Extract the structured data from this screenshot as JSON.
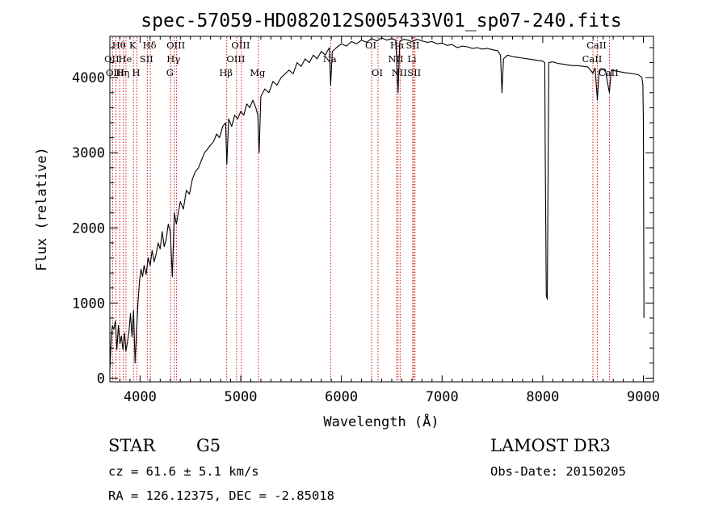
{
  "chart_data": {
    "type": "line",
    "title": "spec-57059-HD082012S005433V01_sp07-240.fits",
    "xlabel": "Wavelength (Å)",
    "ylabel": "Flux (relative)",
    "xlim": [
      3700,
      9100
    ],
    "ylim": [
      -50,
      4550
    ],
    "xticks": [
      4000,
      5000,
      6000,
      7000,
      8000,
      9000
    ],
    "yticks": [
      0,
      1000,
      2000,
      3000,
      4000
    ],
    "grid": false,
    "series": [
      {
        "x": [
          3700,
          3712,
          3725,
          3740,
          3755,
          3770,
          3785,
          3800,
          3815,
          3830,
          3845,
          3860,
          3875,
          3890,
          3905,
          3920,
          3935,
          3950,
          3965,
          3980,
          3995,
          4010,
          4025,
          4040,
          4060,
          4080,
          4100,
          4120,
          4140,
          4160,
          4180,
          4200,
          4220,
          4240,
          4260,
          4280,
          4300,
          4320,
          4340,
          4360,
          4380,
          4400,
          4430,
          4460,
          4490,
          4520,
          4550,
          4580,
          4610,
          4640,
          4670,
          4700,
          4730,
          4760,
          4790,
          4820,
          4850,
          4862,
          4880,
          4910,
          4940,
          4970,
          5000,
          5030,
          5060,
          5090,
          5120,
          5150,
          5170,
          5183,
          5200,
          5240,
          5280,
          5320,
          5360,
          5400,
          5440,
          5480,
          5520,
          5560,
          5600,
          5640,
          5680,
          5720,
          5760,
          5800,
          5840,
          5880,
          5893,
          5910,
          5950,
          6000,
          6050,
          6100,
          6150,
          6200,
          6250,
          6300,
          6350,
          6400,
          6450,
          6500,
          6540,
          6563,
          6580,
          6620,
          6660,
          6700,
          6750,
          6800,
          6850,
          6900,
          6950,
          7000,
          7050,
          7100,
          7150,
          7200,
          7250,
          7300,
          7350,
          7400,
          7450,
          7500,
          7550,
          7580,
          7595,
          7610,
          7650,
          7700,
          7750,
          7800,
          7850,
          7900,
          7950,
          8000,
          8020,
          8025,
          8035,
          8045,
          8060,
          8100,
          8150,
          8200,
          8250,
          8300,
          8350,
          8400,
          8450,
          8498,
          8520,
          8542,
          8560,
          8580,
          8620,
          8662,
          8680,
          8720,
          8760,
          8800,
          8850,
          8900,
          8950,
          8985,
          8995,
          9000,
          9005
        ],
        "y": [
          100,
          480,
          700,
          650,
          760,
          380,
          700,
          460,
          560,
          380,
          600,
          360,
          480,
          620,
          860,
          550,
          900,
          200,
          620,
          1020,
          1300,
          1450,
          1350,
          1500,
          1380,
          1600,
          1500,
          1700,
          1550,
          1650,
          1800,
          1720,
          1950,
          1750,
          1850,
          2050,
          1950,
          1350,
          2200,
          2050,
          2200,
          2350,
          2250,
          2500,
          2450,
          2650,
          2750,
          2800,
          2900,
          3000,
          3050,
          3100,
          3150,
          3250,
          3200,
          3350,
          3400,
          2850,
          3450,
          3350,
          3500,
          3450,
          3550,
          3500,
          3650,
          3600,
          3700,
          3600,
          3500,
          3000,
          3750,
          3850,
          3800,
          3950,
          3900,
          4000,
          4050,
          4100,
          4050,
          4200,
          4150,
          4250,
          4200,
          4300,
          4250,
          4350,
          4300,
          4400,
          3900,
          4350,
          4400,
          4450,
          4420,
          4480,
          4450,
          4500,
          4470,
          4520,
          4490,
          4530,
          4500,
          4520,
          4500,
          3800,
          4480,
          4510,
          4500,
          4480,
          4510,
          4490,
          4470,
          4480,
          4450,
          4460,
          4430,
          4440,
          4400,
          4420,
          4410,
          4390,
          4400,
          4380,
          4390,
          4370,
          4360,
          4300,
          3800,
          4250,
          4300,
          4280,
          4270,
          4260,
          4250,
          4240,
          4230,
          4220,
          4200,
          2950,
          1100,
          1050,
          4200,
          4210,
          4190,
          4180,
          4170,
          4160,
          4160,
          4150,
          4140,
          4060,
          4130,
          3700,
          4100,
          4120,
          4110,
          3800,
          4100,
          4090,
          4080,
          4070,
          4060,
          4050,
          4040,
          4000,
          3900,
          3400,
          800
        ]
      }
    ],
    "line_markers": [
      {
        "label": "Hθ",
        "wave": 3798,
        "row": 0
      },
      {
        "label": "OII",
        "wave": 3727,
        "row": 1
      },
      {
        "label": "OIII",
        "wave": 3760,
        "row": 2
      },
      {
        "label": "K",
        "wave": 3934,
        "row": 0
      },
      {
        "label": "He",
        "wave": 3860,
        "row": 1
      },
      {
        "label": "Hη",
        "wave": 3835,
        "row": 2
      },
      {
        "label": "Hδ",
        "wave": 4102,
        "row": 0
      },
      {
        "label": "SII",
        "wave": 4072,
        "row": 1
      },
      {
        "label": "H",
        "wave": 3969,
        "row": 2
      },
      {
        "label": "OIII",
        "wave": 4363,
        "row": 0
      },
      {
        "label": "Hγ",
        "wave": 4340,
        "row": 1
      },
      {
        "label": "G",
        "wave": 4305,
        "row": 2
      },
      {
        "label": "OIII",
        "wave": 5007,
        "row": 0
      },
      {
        "label": "OIII",
        "wave": 4959,
        "row": 1
      },
      {
        "label": "Hβ",
        "wave": 4861,
        "row": 2
      },
      {
        "label": "Mg",
        "wave": 5175,
        "row": 2
      },
      {
        "label": "Na",
        "wave": 5893,
        "row": 1
      },
      {
        "label": "OI",
        "wave": 6300,
        "row": 0
      },
      {
        "label": "OI",
        "wave": 6364,
        "row": 2
      },
      {
        "label": "Hα",
        "wave": 6563,
        "row": 0
      },
      {
        "label": "SII",
        "wave": 6717,
        "row": 0
      },
      {
        "label": "NII",
        "wave": 6548,
        "row": 1
      },
      {
        "label": "Li",
        "wave": 6708,
        "row": 1
      },
      {
        "label": "NII",
        "wave": 6583,
        "row": 2
      },
      {
        "label": "SII",
        "wave": 6731,
        "row": 2
      },
      {
        "label": "CaII",
        "wave": 8542,
        "row": 0
      },
      {
        "label": "CaII",
        "wave": 8498,
        "row": 1
      },
      {
        "label": "CaII",
        "wave": 8662,
        "row": 2
      }
    ],
    "marker_color": "#cc0000"
  },
  "info": {
    "class": "STAR",
    "subclass": "G5",
    "survey": "LAMOST DR3",
    "cz": "cz = 61.6 ± 5.1 km/s",
    "obs_date": "Obs-Date: 20150205",
    "coords": "RA = 126.12375, DEC =  -2.85018"
  }
}
